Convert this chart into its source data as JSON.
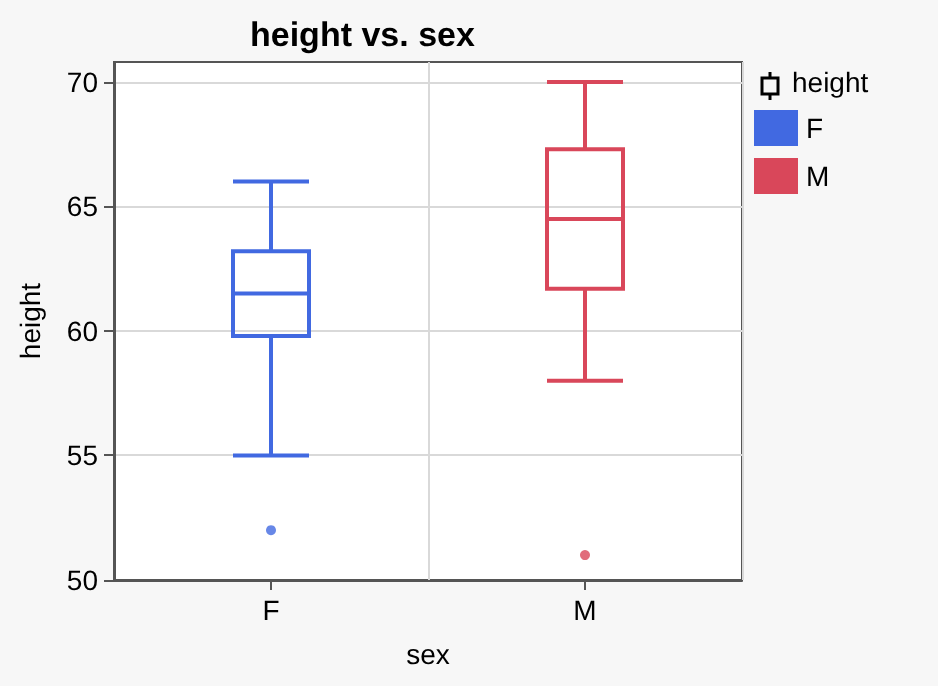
{
  "chart_data": {
    "type": "box",
    "title": "height vs. sex",
    "xlabel": "sex",
    "ylabel": "height",
    "legend_title": "height",
    "categories": [
      "F",
      "M"
    ],
    "series": [
      {
        "name": "F",
        "color": "#4169e1",
        "boxes": [
          {
            "low": 55,
            "q1": 59.8,
            "median": 61.5,
            "q3": 63.2,
            "high": 66,
            "outliers": [
              52
            ]
          },
          null
        ]
      },
      {
        "name": "M",
        "color": "#d9475a",
        "boxes": [
          null,
          {
            "low": 58,
            "q1": 61.7,
            "median": 64.5,
            "q3": 67.3,
            "high": 70,
            "outliers": [
              51
            ]
          }
        ]
      }
    ],
    "ylim": [
      50,
      70.8
    ],
    "yticks": [
      50,
      55,
      60,
      65,
      70
    ],
    "grid": true,
    "legend": "top right"
  }
}
